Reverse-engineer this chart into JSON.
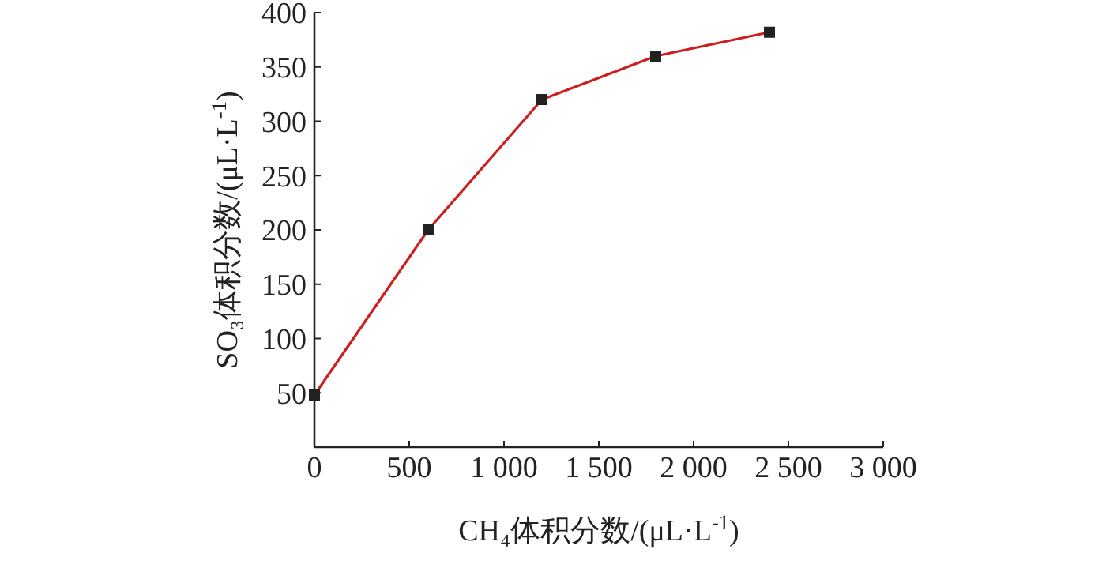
{
  "chart_data": {
    "type": "line",
    "xlabel": "CH₄体积分数/(μL·L$^{-1}$)",
    "ylabel": "SO₃体积分数/(μL·L$^{-1}$)",
    "x": [
      0,
      600,
      1200,
      1800,
      2400
    ],
    "series": [
      {
        "color": "#cc1f1f",
        "values": [
          48,
          200,
          320,
          360,
          382
        ]
      }
    ],
    "marker": "square",
    "line_style": "solid",
    "xlim": [
      0,
      3000
    ],
    "xticks": [
      0,
      {
        "value": 500,
        "label": "500"
      },
      {
        "value": 1000,
        "label": "1 000"
      },
      {
        "value": 1500,
        "label": "1 500"
      },
      {
        "value": 2000,
        "label": "2 000"
      },
      {
        "value": 2500,
        "label": "2 500"
      },
      {
        "value": 3000,
        "label": "3 000"
      }
    ],
    "ylim": [
      0,
      400
    ],
    "yticks": [
      {
        "value": 0,
        "label": null
      },
      50,
      100,
      150,
      200,
      250,
      300,
      350,
      400
    ],
    "grid": false
  }
}
